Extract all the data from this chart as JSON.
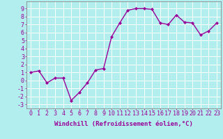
{
  "x": [
    0,
    1,
    2,
    3,
    4,
    5,
    6,
    7,
    8,
    9,
    10,
    11,
    12,
    13,
    14,
    15,
    16,
    17,
    18,
    19,
    20,
    21,
    22,
    23
  ],
  "y": [
    1,
    1.2,
    -0.3,
    0.3,
    0.3,
    -2.5,
    -1.5,
    -0.3,
    1.3,
    1.5,
    5.5,
    7.2,
    8.8,
    9.0,
    9.0,
    8.9,
    7.2,
    7.0,
    8.2,
    7.3,
    7.2,
    5.7,
    6.2,
    7.2
  ],
  "line_color": "#990099",
  "marker": "D",
  "marker_size": 2.0,
  "linewidth": 1.0,
  "bg_color": "#b2eeee",
  "grid_color": "#ffffff",
  "xlabel": "Windchill (Refroidissement éolien,°C)",
  "xlim": [
    -0.5,
    23.5
  ],
  "ylim": [
    -3.5,
    9.9
  ],
  "xtick_labels": [
    "0",
    "1",
    "2",
    "3",
    "4",
    "5",
    "6",
    "7",
    "8",
    "9",
    "10",
    "11",
    "12",
    "13",
    "14",
    "15",
    "16",
    "17",
    "18",
    "19",
    "20",
    "21",
    "22",
    "23"
  ],
  "ytick_min": -3,
  "ytick_max": 9,
  "xlabel_fontsize": 6.5,
  "tick_fontsize": 6.0
}
